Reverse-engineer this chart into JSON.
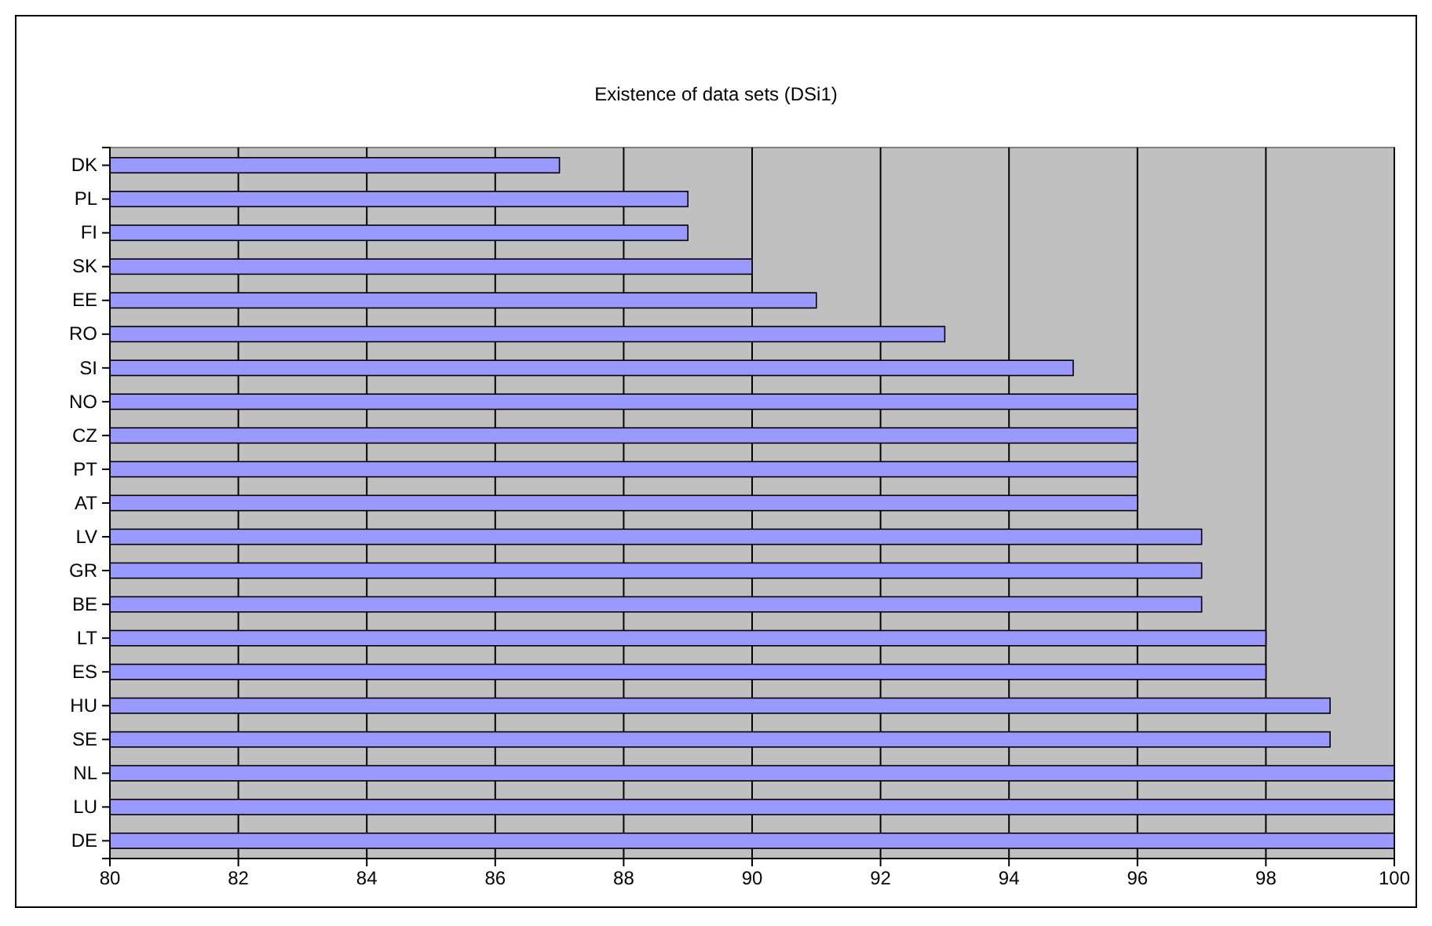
{
  "chart_data": {
    "type": "bar",
    "title": "Existence of data sets (DSi1)",
    "orientation": "horizontal",
    "categories": [
      "DK",
      "PL",
      "FI",
      "SK",
      "EE",
      "RO",
      "SI",
      "NO",
      "CZ",
      "PT",
      "AT",
      "LV",
      "GR",
      "BE",
      "LT",
      "ES",
      "HU",
      "SE",
      "NL",
      "LU",
      "DE"
    ],
    "values": [
      87,
      89,
      89,
      90,
      91,
      93,
      95,
      96,
      96,
      96,
      96,
      97,
      97,
      97,
      98,
      98,
      99,
      99,
      100,
      100,
      100
    ],
    "color": "#9999ff",
    "xlim": [
      80,
      100
    ],
    "xticks": [
      80,
      82,
      84,
      86,
      88,
      90,
      92,
      94,
      96,
      98,
      100
    ],
    "grid": "x"
  }
}
